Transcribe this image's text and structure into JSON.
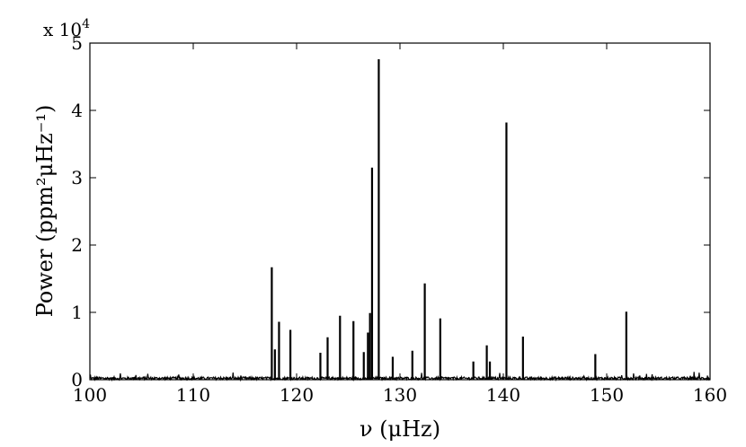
{
  "chart_data": {
    "type": "line",
    "title": "",
    "xlabel": "ν (μHz)",
    "ylabel": "Power (ppm²μHz⁻¹)",
    "xlim": [
      100,
      160
    ],
    "ylim": [
      0,
      50000
    ],
    "y_scale_label": "x 10",
    "y_scale_exponent": "4",
    "grid": false,
    "x_ticks": [
      100,
      110,
      120,
      130,
      140,
      150,
      160
    ],
    "y_ticks": [
      0,
      10000,
      20000,
      30000,
      40000,
      50000
    ],
    "x_tick_labels": [
      "100",
      "110",
      "120",
      "130",
      "140",
      "150",
      "160"
    ],
    "y_tick_labels": [
      "0",
      "1",
      "2",
      "3",
      "4",
      "5"
    ],
    "baseline_noise_level": 400,
    "peaks": [
      {
        "x": 117.6,
        "y": 16700
      },
      {
        "x": 117.9,
        "y": 4500
      },
      {
        "x": 118.3,
        "y": 8600
      },
      {
        "x": 119.4,
        "y": 7400
      },
      {
        "x": 122.3,
        "y": 4000
      },
      {
        "x": 123.0,
        "y": 6300
      },
      {
        "x": 124.2,
        "y": 9500
      },
      {
        "x": 125.5,
        "y": 8700
      },
      {
        "x": 126.5,
        "y": 4100
      },
      {
        "x": 126.9,
        "y": 7000
      },
      {
        "x": 127.1,
        "y": 9900
      },
      {
        "x": 127.3,
        "y": 31500
      },
      {
        "x": 127.95,
        "y": 47600
      },
      {
        "x": 129.3,
        "y": 3400
      },
      {
        "x": 131.2,
        "y": 4300
      },
      {
        "x": 132.4,
        "y": 14300
      },
      {
        "x": 133.9,
        "y": 9100
      },
      {
        "x": 137.1,
        "y": 2700
      },
      {
        "x": 138.4,
        "y": 5100
      },
      {
        "x": 138.7,
        "y": 2700
      },
      {
        "x": 140.3,
        "y": 38200
      },
      {
        "x": 141.9,
        "y": 6400
      },
      {
        "x": 148.9,
        "y": 3800
      },
      {
        "x": 151.9,
        "y": 10100
      }
    ],
    "colors": {
      "line": "#000000",
      "axes": "#000000",
      "background": "#ffffff"
    }
  }
}
